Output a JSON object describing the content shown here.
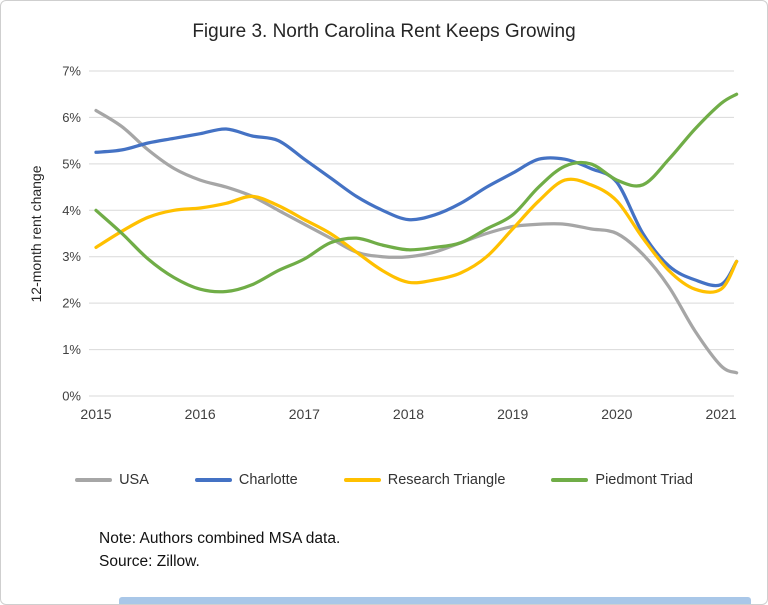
{
  "chart_data": {
    "type": "line",
    "title": "Figure 3. North Carolina Rent Keeps Growing",
    "ylabel": "12-month rent change",
    "xlabel": "",
    "ylim": [
      0,
      7
    ],
    "yticks": [
      0,
      1,
      2,
      3,
      4,
      5,
      6,
      7
    ],
    "ytick_labels": [
      "0%",
      "1%",
      "2%",
      "3%",
      "4%",
      "5%",
      "6%",
      "7%"
    ],
    "xticks": [
      2015,
      2016,
      2017,
      2018,
      2019,
      2020,
      2021
    ],
    "xtick_labels": [
      "2015",
      "2016",
      "2017",
      "2018",
      "2019",
      "2020",
      "2021"
    ],
    "grid": true,
    "legend_position": "bottom",
    "x": [
      2015.0,
      2015.25,
      2015.5,
      2015.75,
      2016.0,
      2016.25,
      2016.5,
      2016.75,
      2017.0,
      2017.25,
      2017.5,
      2017.75,
      2018.0,
      2018.25,
      2018.5,
      2018.75,
      2019.0,
      2019.25,
      2019.5,
      2019.75,
      2020.0,
      2020.25,
      2020.5,
      2020.75,
      2021.0,
      2021.15
    ],
    "series": [
      {
        "name": "USA",
        "color": "#a6a6a6",
        "values": [
          6.15,
          5.8,
          5.3,
          4.9,
          4.65,
          4.5,
          4.3,
          4.0,
          3.7,
          3.4,
          3.1,
          3.0,
          3.0,
          3.1,
          3.3,
          3.5,
          3.65,
          3.7,
          3.7,
          3.6,
          3.5,
          3.05,
          2.35,
          1.4,
          0.65,
          0.5
        ]
      },
      {
        "name": "Charlotte",
        "color": "#4472c4",
        "values": [
          5.25,
          5.3,
          5.45,
          5.55,
          5.65,
          5.75,
          5.6,
          5.5,
          5.1,
          4.7,
          4.3,
          4.0,
          3.8,
          3.9,
          4.15,
          4.5,
          4.8,
          5.1,
          5.1,
          4.9,
          4.6,
          3.5,
          2.8,
          2.5,
          2.4,
          2.9
        ]
      },
      {
        "name": "Research Triangle",
        "color": "#ffc000",
        "values": [
          3.2,
          3.55,
          3.85,
          4.0,
          4.05,
          4.15,
          4.3,
          4.1,
          3.8,
          3.5,
          3.1,
          2.7,
          2.45,
          2.5,
          2.65,
          3.0,
          3.6,
          4.2,
          4.65,
          4.55,
          4.2,
          3.4,
          2.7,
          2.3,
          2.3,
          2.9
        ]
      },
      {
        "name": "Piedmont Triad",
        "color": "#70ad47",
        "values": [
          4.0,
          3.5,
          2.95,
          2.55,
          2.3,
          2.25,
          2.4,
          2.7,
          2.95,
          3.3,
          3.4,
          3.25,
          3.15,
          3.2,
          3.3,
          3.6,
          3.9,
          4.5,
          4.95,
          5.0,
          4.65,
          4.55,
          5.1,
          5.75,
          6.3,
          6.5
        ]
      }
    ],
    "grid_color": "#d9d9d9",
    "tick_color": "#404040"
  },
  "notes": {
    "line1": "Note: Authors combined MSA data.",
    "line2": "Source: Zillow."
  }
}
